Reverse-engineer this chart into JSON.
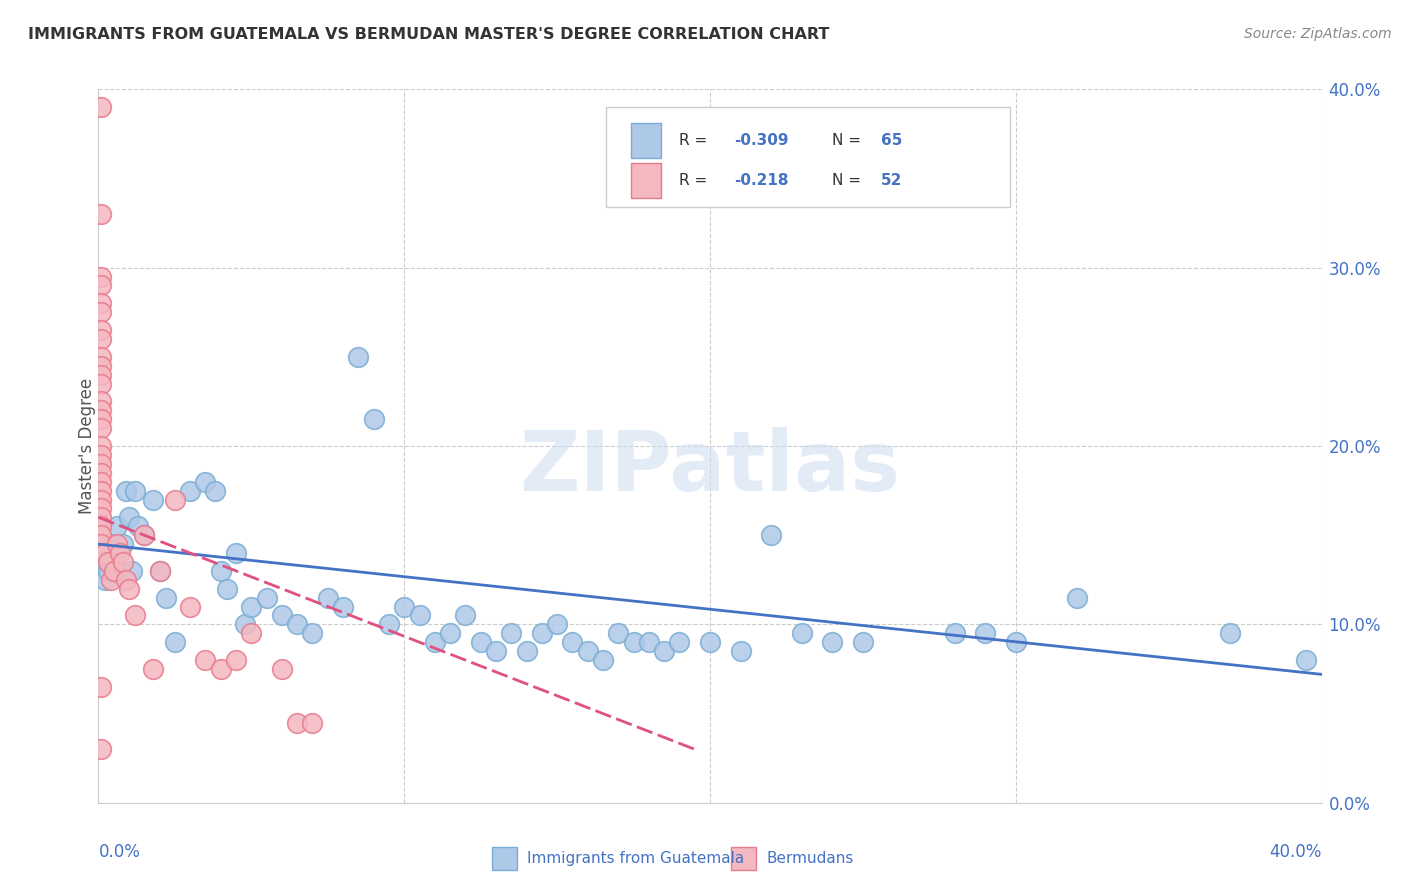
{
  "title": "IMMIGRANTS FROM GUATEMALA VS BERMUDAN MASTER'S DEGREE CORRELATION CHART",
  "source": "Source: ZipAtlas.com",
  "ylabel": "Master's Degree",
  "legend_label1": "Immigrants from Guatemala",
  "legend_label2": "Bermudans",
  "watermark": "ZIPatlas",
  "blue_color": "#aec8e8",
  "blue_edge_color": "#7aadd4",
  "pink_color": "#f4b8c1",
  "pink_edge_color": "#e87a8a",
  "blue_line_color": "#4472c4",
  "pink_line_color": "#e05080",
  "axis_label_color": "#4472c4",
  "legend_text_color": "#4472c4",
  "grid_color": "#cccccc",
  "title_color": "#333333",
  "background_color": "#ffffff",
  "blue_scatter": [
    [
      0.001,
      0.135
    ],
    [
      0.002,
      0.125
    ],
    [
      0.003,
      0.13
    ],
    [
      0.004,
      0.145
    ],
    [
      0.005,
      0.135
    ],
    [
      0.006,
      0.155
    ],
    [
      0.007,
      0.13
    ],
    [
      0.008,
      0.145
    ],
    [
      0.009,
      0.175
    ],
    [
      0.01,
      0.16
    ],
    [
      0.011,
      0.13
    ],
    [
      0.012,
      0.175
    ],
    [
      0.013,
      0.155
    ],
    [
      0.015,
      0.15
    ],
    [
      0.018,
      0.17
    ],
    [
      0.02,
      0.13
    ],
    [
      0.022,
      0.115
    ],
    [
      0.025,
      0.09
    ],
    [
      0.03,
      0.175
    ],
    [
      0.035,
      0.18
    ],
    [
      0.038,
      0.175
    ],
    [
      0.04,
      0.13
    ],
    [
      0.042,
      0.12
    ],
    [
      0.045,
      0.14
    ],
    [
      0.048,
      0.1
    ],
    [
      0.05,
      0.11
    ],
    [
      0.055,
      0.115
    ],
    [
      0.06,
      0.105
    ],
    [
      0.065,
      0.1
    ],
    [
      0.07,
      0.095
    ],
    [
      0.075,
      0.115
    ],
    [
      0.08,
      0.11
    ],
    [
      0.085,
      0.25
    ],
    [
      0.09,
      0.215
    ],
    [
      0.095,
      0.1
    ],
    [
      0.1,
      0.11
    ],
    [
      0.105,
      0.105
    ],
    [
      0.11,
      0.09
    ],
    [
      0.115,
      0.095
    ],
    [
      0.12,
      0.105
    ],
    [
      0.125,
      0.09
    ],
    [
      0.13,
      0.085
    ],
    [
      0.135,
      0.095
    ],
    [
      0.14,
      0.085
    ],
    [
      0.145,
      0.095
    ],
    [
      0.15,
      0.1
    ],
    [
      0.155,
      0.09
    ],
    [
      0.16,
      0.085
    ],
    [
      0.165,
      0.08
    ],
    [
      0.17,
      0.095
    ],
    [
      0.175,
      0.09
    ],
    [
      0.18,
      0.09
    ],
    [
      0.185,
      0.085
    ],
    [
      0.19,
      0.09
    ],
    [
      0.2,
      0.09
    ],
    [
      0.21,
      0.085
    ],
    [
      0.22,
      0.15
    ],
    [
      0.23,
      0.095
    ],
    [
      0.24,
      0.09
    ],
    [
      0.25,
      0.09
    ],
    [
      0.28,
      0.095
    ],
    [
      0.29,
      0.095
    ],
    [
      0.3,
      0.09
    ],
    [
      0.32,
      0.115
    ],
    [
      0.37,
      0.095
    ],
    [
      0.395,
      0.08
    ]
  ],
  "pink_scatter": [
    [
      0.001,
      0.39
    ],
    [
      0.001,
      0.33
    ],
    [
      0.001,
      0.295
    ],
    [
      0.001,
      0.29
    ],
    [
      0.001,
      0.28
    ],
    [
      0.001,
      0.275
    ],
    [
      0.001,
      0.265
    ],
    [
      0.001,
      0.26
    ],
    [
      0.001,
      0.25
    ],
    [
      0.001,
      0.245
    ],
    [
      0.001,
      0.24
    ],
    [
      0.001,
      0.235
    ],
    [
      0.001,
      0.225
    ],
    [
      0.001,
      0.22
    ],
    [
      0.001,
      0.215
    ],
    [
      0.001,
      0.21
    ],
    [
      0.001,
      0.2
    ],
    [
      0.001,
      0.195
    ],
    [
      0.001,
      0.19
    ],
    [
      0.001,
      0.185
    ],
    [
      0.001,
      0.18
    ],
    [
      0.001,
      0.175
    ],
    [
      0.001,
      0.17
    ],
    [
      0.001,
      0.165
    ],
    [
      0.001,
      0.16
    ],
    [
      0.001,
      0.155
    ],
    [
      0.001,
      0.15
    ],
    [
      0.001,
      0.145
    ],
    [
      0.001,
      0.065
    ],
    [
      0.001,
      0.03
    ],
    [
      0.002,
      0.14
    ],
    [
      0.003,
      0.135
    ],
    [
      0.004,
      0.125
    ],
    [
      0.005,
      0.13
    ],
    [
      0.006,
      0.145
    ],
    [
      0.007,
      0.14
    ],
    [
      0.008,
      0.135
    ],
    [
      0.009,
      0.125
    ],
    [
      0.01,
      0.12
    ],
    [
      0.012,
      0.105
    ],
    [
      0.015,
      0.15
    ],
    [
      0.018,
      0.075
    ],
    [
      0.02,
      0.13
    ],
    [
      0.025,
      0.17
    ],
    [
      0.03,
      0.11
    ],
    [
      0.035,
      0.08
    ],
    [
      0.04,
      0.075
    ],
    [
      0.045,
      0.08
    ],
    [
      0.05,
      0.095
    ],
    [
      0.06,
      0.075
    ],
    [
      0.065,
      0.045
    ],
    [
      0.07,
      0.045
    ]
  ],
  "blue_trend_x": [
    0.0,
    0.4
  ],
  "blue_trend_y": [
    0.145,
    0.072
  ],
  "pink_trend_x": [
    0.0,
    0.195
  ],
  "pink_trend_y": [
    0.16,
    0.03
  ],
  "xmin": 0.0,
  "xmax": 0.4,
  "ymin": 0.0,
  "ymax": 0.4,
  "ytick_vals": [
    0.0,
    0.1,
    0.2,
    0.3,
    0.4
  ],
  "ytick_labels": [
    "0.0%",
    "10.0%",
    "20.0%",
    "30.0%",
    "40.0%"
  ]
}
